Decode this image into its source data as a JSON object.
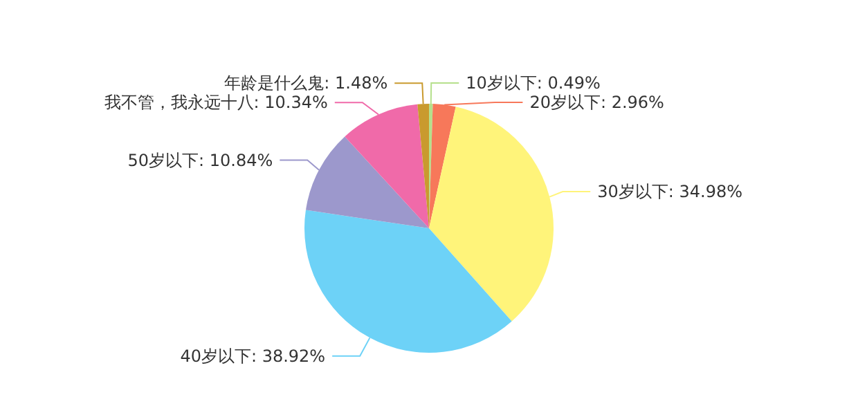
{
  "chart_data": {
    "type": "pie",
    "categories": [
      "10岁以下",
      "20岁以下",
      "30岁以下",
      "40岁以下",
      "50岁以下",
      "我不管，我永远十八",
      "年龄是什么鬼"
    ],
    "values": [
      0.49,
      2.96,
      34.98,
      38.92,
      10.84,
      10.34,
      1.48
    ],
    "value_labels": [
      "0.49%",
      "2.96%",
      "34.98%",
      "38.92%",
      "10.84%",
      "10.34%",
      "1.48%"
    ],
    "colors": [
      "#b5e08c",
      "#f7785a",
      "#fff47a",
      "#6dd2f7",
      "#9c98cc",
      "#f06aa9",
      "#c99a2e"
    ],
    "legend": false
  }
}
